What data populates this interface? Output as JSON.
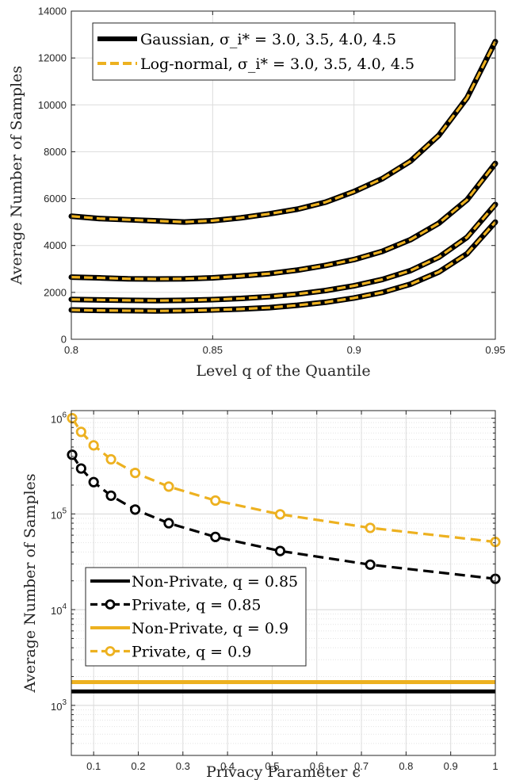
{
  "chart_data": [
    {
      "type": "line",
      "xlabel": "Level q of the Quantile",
      "ylabel": "Average Number of Samples",
      "xlim": [
        0.8,
        0.95
      ],
      "ylim": [
        0,
        14000
      ],
      "x_ticks": [
        "0.8",
        "0.85",
        "0.9",
        "0.95"
      ],
      "y_ticks": [
        "0",
        "2000",
        "4000",
        "6000",
        "8000",
        "10000",
        "12000",
        "14000"
      ],
      "grid": true,
      "legend_position": "top-left",
      "legend": [
        {
          "label": "Gaussian, σ_i* = 3.0, 3.5, 4.0, 4.5",
          "color": "#000000",
          "style": "solid"
        },
        {
          "label": "Log-normal, σ_i* = 3.0, 3.5, 4.0, 4.5",
          "color": "#EDB120",
          "style": "dashed"
        }
      ],
      "x": [
        0.8,
        0.81,
        0.82,
        0.83,
        0.84,
        0.85,
        0.86,
        0.87,
        0.88,
        0.89,
        0.9,
        0.91,
        0.92,
        0.93,
        0.94,
        0.95
      ],
      "series": [
        {
          "name": "σ_i* = 3.0",
          "values": [
            5250,
            5150,
            5100,
            5050,
            5000,
            5060,
            5180,
            5350,
            5550,
            5850,
            6300,
            6850,
            7600,
            8700,
            10300,
            12700
          ]
        },
        {
          "name": "σ_i* = 3.5",
          "values": [
            2650,
            2620,
            2580,
            2570,
            2580,
            2620,
            2700,
            2800,
            2950,
            3150,
            3400,
            3750,
            4250,
            4950,
            5950,
            7500
          ]
        },
        {
          "name": "σ_i* = 4.0",
          "values": [
            1700,
            1680,
            1660,
            1650,
            1660,
            1690,
            1740,
            1820,
            1930,
            2080,
            2280,
            2550,
            2930,
            3500,
            4350,
            5750
          ]
        },
        {
          "name": "σ_i* = 4.5",
          "values": [
            1250,
            1230,
            1220,
            1210,
            1220,
            1250,
            1290,
            1350,
            1450,
            1580,
            1760,
            2000,
            2350,
            2870,
            3650,
            5000
          ]
        }
      ]
    },
    {
      "type": "line",
      "xlabel": "Privacy Parameter ϵ",
      "ylabel": "Average Number of Samples",
      "xlim": [
        0.05,
        1.0
      ],
      "y_scale": "log",
      "ylim": [
        300,
        1200000
      ],
      "x_ticks": [
        "0.1",
        "0.2",
        "0.3",
        "0.4",
        "0.5",
        "0.6",
        "0.7",
        "0.8",
        "0.9",
        "1"
      ],
      "y_ticks": [
        {
          "base": "10",
          "exp": "3"
        },
        {
          "base": "10",
          "exp": "4"
        },
        {
          "base": "10",
          "exp": "5"
        },
        {
          "base": "10",
          "exp": "6"
        }
      ],
      "grid": true,
      "legend_position": "bottom-left",
      "series": [
        {
          "name": "Non-Private, q = 0.85",
          "color": "#000000",
          "style": "solid",
          "x": [
            0.05,
            1.0
          ],
          "values": [
            1400,
            1400
          ]
        },
        {
          "name": "Private, q = 0.85",
          "color": "#000000",
          "style": "dashed",
          "markers": true,
          "x": [
            0.0518,
            0.0719,
            0.1,
            0.1389,
            0.1931,
            0.2683,
            0.3728,
            0.5179,
            0.7197,
            1.0
          ],
          "values": [
            415000,
            298000,
            215000,
            155000,
            111000,
            80000,
            57500,
            41000,
            29500,
            21000
          ]
        },
        {
          "name": "Non-Private, q = 0.9",
          "color": "#EDB120",
          "style": "solid",
          "x": [
            0.05,
            1.0
          ],
          "values": [
            1750,
            1750
          ]
        },
        {
          "name": "Private, q = 0.9",
          "color": "#EDB120",
          "style": "dashed",
          "markers": true,
          "x": [
            0.0518,
            0.0719,
            0.1,
            0.1389,
            0.1931,
            0.2683,
            0.3728,
            0.5179,
            0.7197,
            1.0
          ],
          "values": [
            1000000,
            720000,
            520000,
            372000,
            268000,
            193000,
            138000,
            99000,
            71500,
            51000
          ]
        }
      ]
    }
  ]
}
